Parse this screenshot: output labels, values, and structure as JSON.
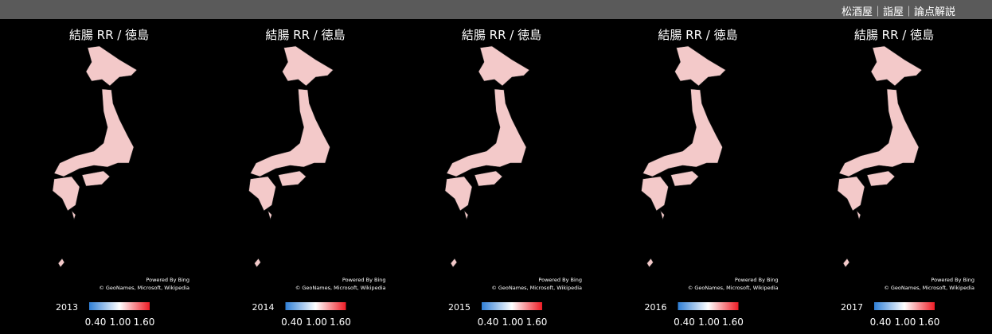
{
  "header": {
    "brand": "松酒屋｜詣屋｜論点解説"
  },
  "panels": [
    {
      "title": "結腸 RR / 徳島",
      "year": "2013",
      "legend": {
        "min": "0.40",
        "mid": "1.00",
        "max": "1.60"
      },
      "credit": [
        "Powered By Bing",
        "© GeoNames, Microsoft, Wikipedia"
      ]
    },
    {
      "title": "結腸 RR / 徳島",
      "year": "2014",
      "legend": {
        "min": "0.40",
        "mid": "1.00",
        "max": "1.60"
      },
      "credit": [
        "Powered By Bing",
        "© GeoNames, Microsoft, Wikipedia"
      ]
    },
    {
      "title": "結腸 RR / 徳島",
      "year": "2015",
      "legend": {
        "min": "0.40",
        "mid": "1.00",
        "max": "1.60"
      },
      "credit": [
        "Powered By Bing",
        "© GeoNames, Microsoft, Wikipedia"
      ]
    },
    {
      "title": "結腸 RR / 徳島",
      "year": "2016",
      "legend": {
        "min": "0.40",
        "mid": "1.00",
        "max": "1.60"
      },
      "credit": [
        "Powered By Bing",
        "© GeoNames, Microsoft, Wikipedia"
      ]
    },
    {
      "title": "結腸 RR / 徳島",
      "year": "2017",
      "legend": {
        "min": "0.40",
        "mid": "1.00",
        "max": "1.60"
      },
      "credit": [
        "Powered By Bing",
        "© GeoNames, Microsoft, Wikipedia"
      ]
    }
  ]
}
